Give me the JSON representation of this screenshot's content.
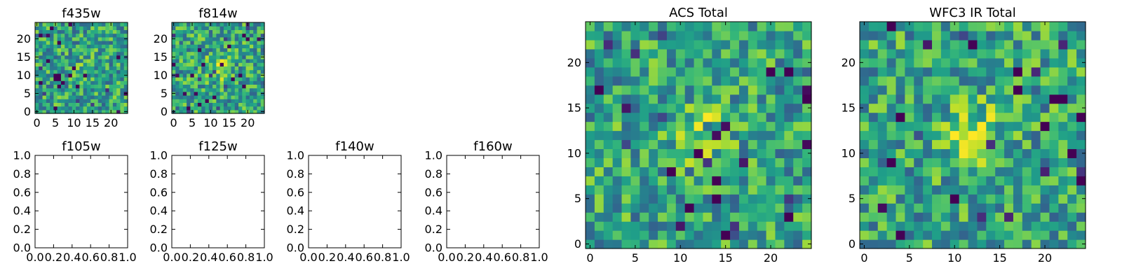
{
  "chart_data": [
    {
      "type": "heatmap",
      "title": "f435w",
      "grid_size": 25,
      "xlim": [
        -0.5,
        24.5
      ],
      "ylim": [
        -0.5,
        24.5
      ],
      "xticks": [
        0,
        5,
        10,
        15,
        20
      ],
      "yticks": [
        0,
        5,
        10,
        15,
        20
      ],
      "colormap": "viridis",
      "source_peak": [
        10,
        12
      ],
      "source_amplitude": 0.05,
      "seed": 11
    },
    {
      "type": "heatmap",
      "title": "f814w",
      "grid_size": 25,
      "xlim": [
        -0.5,
        24.5
      ],
      "ylim": [
        -0.5,
        24.5
      ],
      "xticks": [
        0,
        5,
        10,
        15,
        20
      ],
      "yticks": [
        0,
        5,
        10,
        15,
        20
      ],
      "colormap": "viridis",
      "source_peak": [
        12,
        12
      ],
      "source_amplitude": 0.3,
      "seed": 23
    },
    {
      "type": "heatmap",
      "title": "f105w",
      "empty": true,
      "xlim": [
        0,
        1
      ],
      "ylim": [
        0,
        1
      ],
      "xticks": [
        "0.0",
        "0.2",
        "0.4",
        "0.6",
        "0.8",
        "1.0"
      ],
      "yticks": [
        "0.0",
        "0.2",
        "0.4",
        "0.6",
        "0.8",
        "1.0"
      ]
    },
    {
      "type": "heatmap",
      "title": "f125w",
      "empty": true,
      "xlim": [
        0,
        1
      ],
      "ylim": [
        0,
        1
      ],
      "xticks": [
        "0.0",
        "0.2",
        "0.4",
        "0.6",
        "0.8",
        "1.0"
      ],
      "yticks": [
        "0.0",
        "0.2",
        "0.4",
        "0.6",
        "0.8",
        "1.0"
      ]
    },
    {
      "type": "heatmap",
      "title": "f140w",
      "empty": true,
      "xlim": [
        0,
        1
      ],
      "ylim": [
        0,
        1
      ],
      "xticks": [
        "0.0",
        "0.2",
        "0.4",
        "0.6",
        "0.8",
        "1.0"
      ],
      "yticks": [
        "0.0",
        "0.2",
        "0.4",
        "0.6",
        "0.8",
        "1.0"
      ]
    },
    {
      "type": "heatmap",
      "title": "f160w",
      "empty": true,
      "xlim": [
        0,
        1
      ],
      "ylim": [
        0,
        1
      ],
      "xticks": [
        "0.0",
        "0.2",
        "0.4",
        "0.6",
        "0.8",
        "1.0"
      ],
      "yticks": [
        "0.0",
        "0.2",
        "0.4",
        "0.6",
        "0.8",
        "1.0"
      ]
    },
    {
      "type": "heatmap",
      "title": "ACS Total",
      "grid_size": 25,
      "xlim": [
        -0.5,
        24.5
      ],
      "ylim": [
        -0.5,
        24.5
      ],
      "xticks": [
        0,
        5,
        10,
        15,
        20
      ],
      "yticks": [
        0,
        5,
        10,
        15,
        20
      ],
      "colormap": "viridis",
      "source_peak": [
        12,
        12
      ],
      "source_amplitude": 0.25,
      "seed": 37
    },
    {
      "type": "heatmap",
      "title": "WFC3 IR Total",
      "grid_size": 25,
      "xlim": [
        -0.5,
        24.5
      ],
      "ylim": [
        -0.5,
        24.5
      ],
      "xticks": [
        0,
        5,
        10,
        15,
        20
      ],
      "yticks": [
        0,
        5,
        10,
        15,
        20
      ],
      "colormap": "viridis",
      "source_peak": [
        12,
        12
      ],
      "source_amplitude": 0.35,
      "seed": 53
    }
  ]
}
